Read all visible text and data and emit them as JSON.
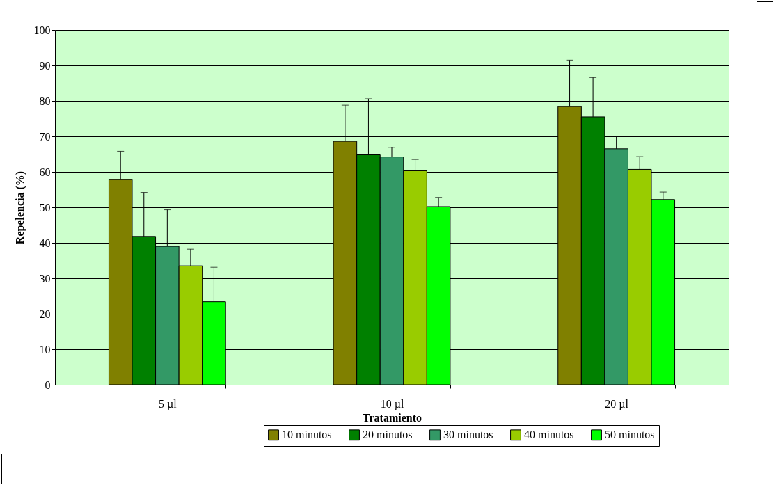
{
  "chart_data": {
    "type": "bar",
    "xlabel": "Tratamiento",
    "ylabel": "Repelencia (%)",
    "categories": [
      "5 µl",
      "10 µl",
      "20 µl"
    ],
    "series": [
      {
        "name": "10 minutos",
        "color": "#808000",
        "values": [
          57.8,
          68.6,
          78.4
        ],
        "errors": [
          [
            57.8,
            65.8
          ],
          [
            68.6,
            78.8
          ],
          [
            78.4,
            91.5
          ]
        ]
      },
      {
        "name": "20 minutos",
        "color": "#008000",
        "values": [
          41.8,
          64.8,
          75.5
        ],
        "errors": [
          [
            41.8,
            54.2
          ],
          [
            64.8,
            80.6
          ],
          [
            75.5,
            86.6
          ]
        ]
      },
      {
        "name": "30 minutos",
        "color": "#339966",
        "values": [
          39,
          64.2,
          66.5
        ],
        "errors": [
          [
            39,
            49.3
          ],
          [
            64.2,
            66.9
          ],
          [
            66.5,
            70
          ]
        ]
      },
      {
        "name": "40 minutos",
        "color": "#99cc00",
        "values": [
          33.5,
          60.3,
          60.7
        ],
        "errors": [
          [
            33.5,
            38.2
          ],
          [
            60.3,
            63.5
          ],
          [
            60.7,
            64.3
          ]
        ]
      },
      {
        "name": "50 minutos",
        "color": "#00ff00",
        "values": [
          23.4,
          50.2,
          52.2
        ],
        "errors": [
          [
            23.4,
            33.1
          ],
          [
            50.2,
            52.8
          ],
          [
            52.2,
            54.3
          ]
        ]
      }
    ],
    "ylim": [
      0,
      100
    ],
    "yticks": [
      0,
      10,
      20,
      30,
      40,
      50,
      60,
      70,
      80,
      90,
      100
    ],
    "grid": "y",
    "legend": "bottom"
  }
}
